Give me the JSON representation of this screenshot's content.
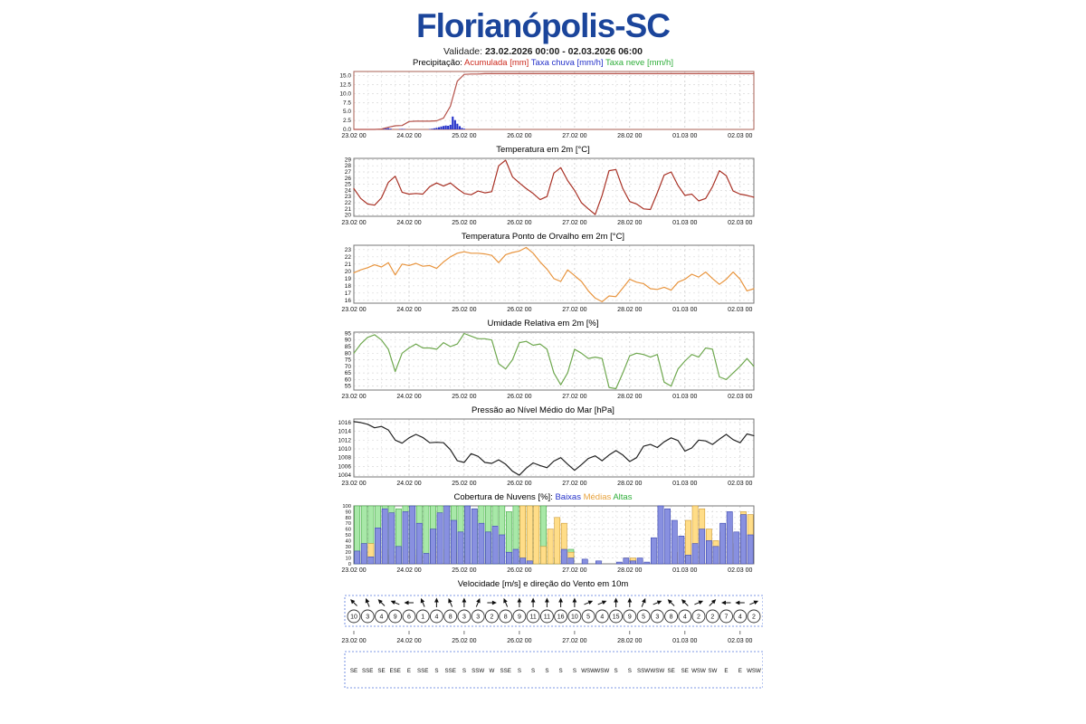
{
  "header": {
    "title": "Florianópolis-SC",
    "title_color": "#1b459b",
    "validade_label": "Validade:",
    "validade_value": "23.02.2026 00:00 - 02.03.2026 06:00"
  },
  "x_axis": {
    "domain": [
      0,
      174
    ],
    "minor_step_hours": 6,
    "tick_hours": [
      0,
      24,
      48,
      72,
      96,
      120,
      144,
      168
    ],
    "tick_labels": [
      "23.02 00",
      "24.02 00",
      "25.02 00",
      "26.02 00",
      "27.02 00",
      "28.02 00",
      "01.03 00",
      "02.03 00"
    ]
  },
  "chart_data": [
    {
      "type": "precip",
      "title_parts": [
        {
          "text": "Precipitação: ",
          "color": "#000000"
        },
        {
          "text": "Acumulada [mm]",
          "color": "#cc2a1e"
        },
        {
          "text": " Taxa chuva [mm/h]",
          "color": "#2431c9"
        },
        {
          "text": " Taxa neve [mm/h]",
          "color": "#2fae3a"
        }
      ],
      "ylim": [
        0,
        16.2
      ],
      "yticks": [
        0,
        2.5,
        5,
        7.5,
        10,
        12.5,
        15
      ],
      "ydec": 1,
      "frame": "#aa6055",
      "line": {
        "name": "Acumulada [mm]",
        "color": "#b5524a",
        "t_step": 3,
        "values": [
          0,
          0,
          0,
          0,
          0.1,
          0.6,
          1,
          1.1,
          2.2,
          2.3,
          2.3,
          2.3,
          2.4,
          3.2,
          6.5,
          13.5,
          15.4,
          15.5,
          15.5,
          15.6,
          15.6,
          15.6,
          15.6,
          15.6,
          15.6,
          15.6,
          15.6,
          15.6,
          15.6,
          15.6,
          15.6,
          15.6,
          15.6,
          15.6,
          15.6,
          15.6,
          15.6,
          15.6,
          15.6,
          15.6,
          15.6,
          15.6,
          15.6,
          15.6,
          15.6,
          15.6,
          15.6,
          15.6,
          15.6,
          15.6,
          15.6,
          15.6,
          15.6,
          15.6,
          15.6,
          15.6,
          15.6,
          15.6,
          15.6
        ]
      },
      "bars": {
        "name": "Taxa chuva [mm/h]",
        "color": "#2431c9",
        "t": [
          13,
          14,
          15,
          16,
          20,
          21,
          22,
          33,
          34,
          35,
          36,
          37,
          38,
          39,
          40,
          41,
          42,
          43,
          44,
          45,
          46,
          47,
          48
        ],
        "v": [
          0.15,
          0.3,
          0.35,
          0.2,
          0.1,
          0.15,
          0.1,
          0.1,
          0.2,
          0.3,
          0.45,
          0.6,
          0.8,
          0.95,
          1.1,
          1.0,
          1.3,
          3.6,
          2.6,
          1.6,
          0.9,
          0.4,
          0.2
        ]
      }
    },
    {
      "type": "line",
      "title_parts": [
        {
          "text": "Temperatura em 2m [°C]",
          "color": "#000000"
        }
      ],
      "ylim": [
        19.8,
        29.2
      ],
      "yticks": [
        20,
        21,
        22,
        23,
        24,
        25,
        26,
        27,
        28,
        29
      ],
      "ydec": 0,
      "color": "#a93226",
      "t_step": 3,
      "values": [
        24.3,
        22.7,
        21.8,
        21.6,
        22.8,
        25.3,
        26.3,
        23.7,
        23.4,
        23.5,
        23.4,
        24.6,
        25.2,
        24.7,
        25.2,
        24.3,
        23.5,
        23.3,
        23.9,
        23.6,
        23.8,
        28.0,
        28.9,
        26.2,
        25.2,
        24.3,
        23.5,
        22.5,
        23.0,
        26.8,
        27.7,
        25.6,
        24.0,
        22.0,
        21.0,
        20.1,
        23.2,
        27.2,
        27.4,
        24.3,
        22.2,
        21.8,
        21.0,
        20.9,
        23.6,
        26.5,
        27.0,
        24.8,
        23.2,
        23.4,
        22.3,
        22.7,
        24.6,
        27.2,
        26.4,
        23.9,
        23.4,
        23.2,
        22.9
      ]
    },
    {
      "type": "line",
      "title_parts": [
        {
          "text": "Temperatura Ponto de Orvalho em 2m [°C]",
          "color": "#000000"
        }
      ],
      "ylim": [
        15.6,
        23.6
      ],
      "yticks": [
        16,
        17,
        18,
        19,
        20,
        21,
        22,
        23
      ],
      "ydec": 0,
      "color": "#e8953f",
      "t_step": 3,
      "values": [
        19.8,
        20.2,
        20.5,
        20.9,
        20.6,
        21.2,
        19.5,
        21.0,
        20.8,
        21.1,
        20.7,
        20.8,
        20.4,
        21.3,
        22.0,
        22.5,
        22.7,
        22.5,
        22.5,
        22.4,
        22.2,
        21.2,
        22.3,
        22.6,
        22.8,
        23.3,
        22.5,
        21.3,
        20.3,
        19.0,
        18.6,
        20.2,
        19.4,
        18.6,
        17.3,
        16.3,
        15.8,
        16.6,
        16.5,
        17.7,
        18.9,
        18.5,
        18.3,
        17.6,
        17.5,
        17.8,
        17.4,
        18.5,
        18.9,
        19.6,
        19.2,
        19.9,
        19.0,
        18.2,
        18.9,
        19.9,
        18.9,
        17.3,
        17.6
      ]
    },
    {
      "type": "line",
      "title_parts": [
        {
          "text": "Umidade Relativa em 2m [%]",
          "color": "#000000"
        }
      ],
      "ylim": [
        52,
        96
      ],
      "yticks": [
        55,
        60,
        65,
        70,
        75,
        80,
        85,
        90,
        95
      ],
      "ydec": 0,
      "color": "#6fa84f",
      "t_step": 3,
      "values": [
        80,
        87,
        92,
        94,
        90,
        83,
        66,
        80,
        84,
        87,
        84,
        84,
        83,
        88,
        85,
        87,
        95,
        93,
        91,
        91,
        90,
        72,
        68,
        75,
        88,
        89,
        86,
        87,
        83,
        65,
        56,
        65,
        83,
        80,
        76,
        77,
        76,
        54,
        53,
        65,
        78,
        80,
        79,
        77,
        79,
        58,
        55,
        68,
        74,
        79,
        77,
        84,
        83,
        62,
        60,
        65,
        70,
        76,
        70
      ]
    },
    {
      "type": "line",
      "title_parts": [
        {
          "text": "Pressão ao Nível Médio do Mar [hPa]",
          "color": "#000000"
        }
      ],
      "ylim": [
        1003.6,
        1016.8
      ],
      "yticks": [
        1004,
        1006,
        1008,
        1010,
        1012,
        1014,
        1016
      ],
      "ydec": 0,
      "color": "#222222",
      "t_step": 3,
      "values": [
        1016.2,
        1016.0,
        1015.6,
        1014.8,
        1015.1,
        1014.3,
        1012.0,
        1011.3,
        1012.5,
        1013.3,
        1012.6,
        1011.4,
        1011.5,
        1011.4,
        1009.8,
        1007.3,
        1006.9,
        1008.9,
        1008.3,
        1006.9,
        1006.7,
        1007.5,
        1006.5,
        1004.9,
        1004.0,
        1005.6,
        1006.8,
        1006.2,
        1005.7,
        1007.2,
        1008.0,
        1006.5,
        1005.1,
        1006.4,
        1007.8,
        1008.4,
        1007.3,
        1008.6,
        1009.6,
        1008.6,
        1007.1,
        1008.0,
        1010.6,
        1011.0,
        1010.3,
        1011.6,
        1012.5,
        1011.9,
        1009.5,
        1010.2,
        1012.0,
        1011.8,
        1011.0,
        1012.2,
        1013.3,
        1012.1,
        1011.4,
        1013.4,
        1013.0
      ]
    },
    {
      "type": "clouds",
      "title_parts": [
        {
          "text": "Cobertura de Nuvens [%]: ",
          "color": "#000000"
        },
        {
          "text": "Baixas",
          "color": "#2431c9"
        },
        {
          "text": " Médias",
          "color": "#e8a33d"
        },
        {
          "text": " Altas",
          "color": "#2fae3a"
        }
      ],
      "ylim": [
        0,
        100
      ],
      "yticks": [
        0,
        10,
        20,
        30,
        40,
        50,
        60,
        70,
        80,
        90,
        100
      ],
      "ydec": 0,
      "ylabel_size": 5.8,
      "t_step": 3,
      "series": [
        {
          "name": "Altas",
          "fill": "#a8e8a8",
          "stroke": "#44aa44",
          "values": [
            100,
            100,
            100,
            100,
            100,
            100,
            95,
            100,
            100,
            100,
            100,
            100,
            100,
            100,
            100,
            100,
            100,
            95,
            100,
            100,
            100,
            100,
            90,
            100,
            100,
            100,
            100,
            100,
            40,
            10,
            0,
            25,
            0,
            0,
            0,
            0,
            0,
            0,
            0,
            0,
            0,
            0,
            0,
            0,
            0,
            0,
            0,
            0,
            0,
            0,
            0,
            0,
            0,
            0,
            0,
            0,
            0,
            0
          ]
        },
        {
          "name": "Médias",
          "fill": "#ffdd88",
          "stroke": "#cc9933",
          "values": [
            0,
            20,
            35,
            30,
            25,
            15,
            0,
            20,
            25,
            15,
            0,
            20,
            30,
            25,
            20,
            0,
            15,
            0,
            10,
            0,
            0,
            0,
            0,
            0,
            100,
            100,
            100,
            30,
            60,
            80,
            70,
            20,
            0,
            0,
            0,
            0,
            0,
            0,
            0,
            10,
            10,
            0,
            0,
            0,
            0,
            0,
            20,
            30,
            75,
            100,
            95,
            60,
            40,
            55,
            65,
            35,
            90,
            85
          ]
        },
        {
          "name": "Baixas",
          "fill": "#8890e0",
          "stroke": "#3a46b0",
          "values": [
            22,
            35,
            12,
            62,
            95,
            88,
            30,
            90,
            100,
            70,
            18,
            60,
            88,
            100,
            75,
            55,
            100,
            95,
            70,
            55,
            65,
            50,
            20,
            25,
            10,
            5,
            0,
            0,
            0,
            0,
            25,
            10,
            0,
            8,
            0,
            5,
            0,
            0,
            3,
            10,
            5,
            10,
            3,
            45,
            100,
            95,
            75,
            48,
            15,
            35,
            60,
            40,
            30,
            70,
            90,
            55,
            85,
            50
          ]
        }
      ]
    },
    {
      "type": "wind",
      "title_parts": [
        {
          "text": "Velocidade [m/s] e direção do Vento em 10m",
          "color": "#000000"
        }
      ],
      "t_step": 6,
      "box_color": "#5577dd",
      "speeds": [
        10,
        3,
        4,
        9,
        6,
        1,
        4,
        8,
        3,
        3,
        2,
        8,
        9,
        11,
        11,
        16,
        10,
        5,
        4,
        15,
        9,
        5,
        3,
        8,
        4,
        2,
        2,
        7,
        4,
        2
      ],
      "directions": [
        "SE",
        "SSE",
        "SE",
        "ESE",
        "E",
        "SSE",
        "S",
        "SSE",
        "S",
        "SSW",
        "W",
        "SSE",
        "S",
        "S",
        "S",
        "S",
        "S",
        "WSW",
        "WSW",
        "S",
        "S",
        "SSW",
        "WSW",
        "SE",
        "SE",
        "WSW",
        "SW",
        "E",
        "E",
        "WSW"
      ]
    }
  ]
}
